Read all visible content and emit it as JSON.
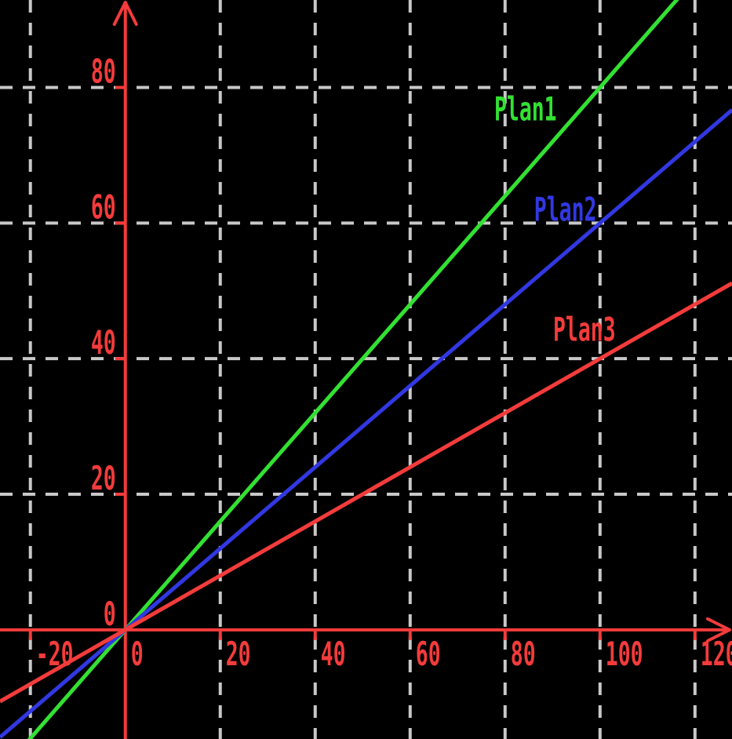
{
  "chart_data": {
    "type": "line",
    "title": "",
    "xlabel": "",
    "ylabel": "",
    "xlim": [
      -26.4,
      127.8
    ],
    "ylim": [
      -16.1,
      92.9
    ],
    "x_ticks": [
      -20,
      0,
      20,
      40,
      60,
      80,
      100,
      120
    ],
    "y_ticks": [
      0,
      20,
      40,
      60,
      80
    ],
    "grid": true,
    "legend_position": "inline-line-labels",
    "colors": {
      "background": "#000000",
      "axis": "#f43b3b",
      "tick_label": "#f43b3b",
      "grid": "#c8c8c8"
    },
    "series": [
      {
        "name": "Plan1",
        "color": "#33e133",
        "slope": 0.8,
        "intercept": 0,
        "label_x": 84.3,
        "label_y": 77.0
      },
      {
        "name": "Plan2",
        "color": "#3138e2",
        "slope": 0.6,
        "intercept": 0,
        "label_x": 92.7,
        "label_y": 62.2
      },
      {
        "name": "Plan3",
        "color": "#f43b3b",
        "slope": 0.4,
        "intercept": 0,
        "label_x": 96.7,
        "label_y": 44.5
      }
    ]
  }
}
